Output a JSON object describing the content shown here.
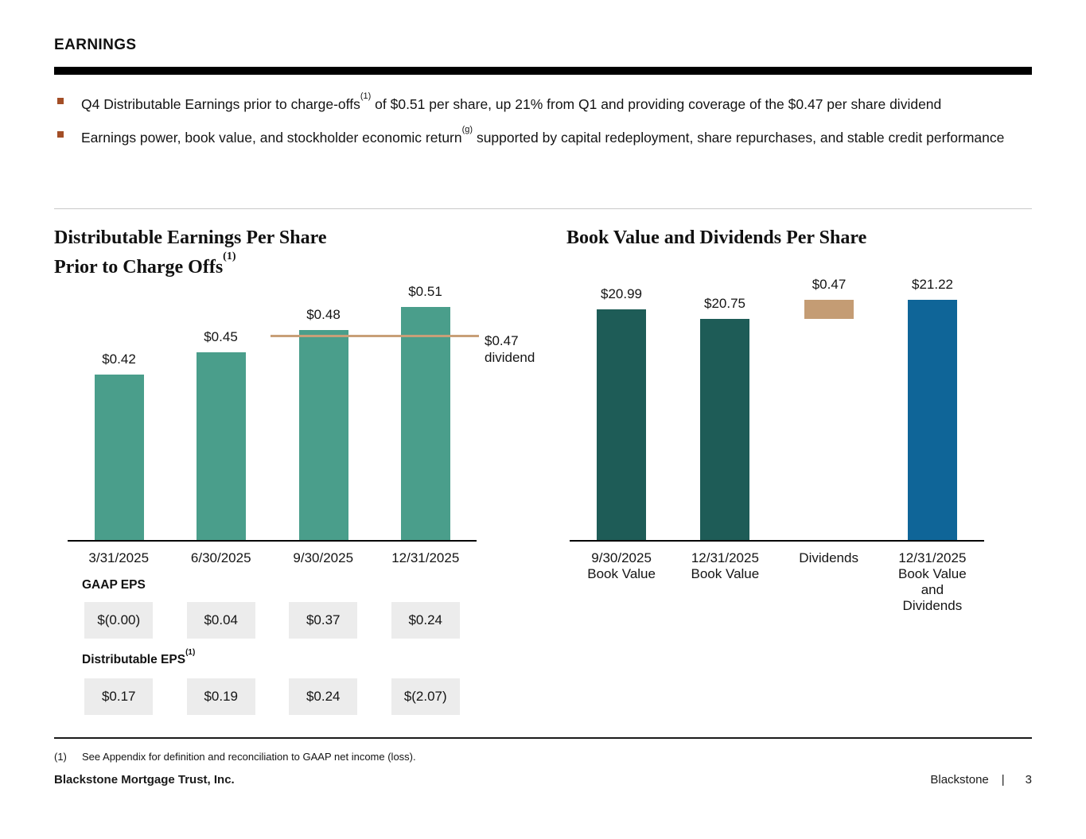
{
  "slide": {
    "header": "EARNINGS",
    "bullets": [
      {
        "pre": "Q4 Distributable Earnings prior to charge-offs",
        "sup": "(1)",
        "post": " of $0.51 per share, up 21% from Q1 and providing coverage of the $0.47 per share dividend"
      },
      {
        "pre": "Earnings power, book value, and stockholder economic return",
        "sup": "(g)",
        "post": " supported by capital redeployment, share repurchases, and stable credit performance"
      }
    ],
    "colors": {
      "bullet": "#A34E26",
      "teal": "#4A9E8B",
      "dark_teal": "#1E5C57",
      "blue": "#0F6598",
      "tan": "#C49C74"
    },
    "footnote": {
      "marker": "(1)",
      "text": "See Appendix for definition and reconciliation to GAAP net income (loss)."
    },
    "footer": {
      "company": "Blackstone Mortgage Trust, Inc.",
      "brand": "Blackstone",
      "separator": "|",
      "page_number": "3"
    }
  },
  "chart_data": [
    {
      "type": "bar",
      "title": "Distributable Earnings Per Share Prior to Charge Offs(1)",
      "title_lines": [
        "Distributable Earnings Per Share",
        "Prior to Charge Offs"
      ],
      "title_sup": "(1)",
      "categories": [
        "3/31/2025",
        "6/30/2025",
        "9/30/2025",
        "12/31/2025"
      ],
      "values": [
        0.42,
        0.45,
        0.48,
        0.51
      ],
      "value_labels": [
        "$0.42",
        "$0.45",
        "$0.48",
        "$0.51"
      ],
      "bar_color": "#4A9E8B",
      "reference_line": {
        "value": 0.47,
        "label_lines": [
          "$0.47",
          "dividend"
        ],
        "color": "#C89F78"
      },
      "ylim": [
        0.2,
        0.54
      ],
      "grid": false,
      "legend": "none"
    },
    {
      "type": "bar",
      "title": "Book Value and Dividends Per Share",
      "categories": [
        [
          "9/30/2025",
          "Book Value"
        ],
        [
          "12/31/2025",
          "Book Value"
        ],
        [
          "Dividends"
        ],
        [
          "12/31/2025",
          "Book Value",
          "and",
          "Dividends"
        ]
      ],
      "bars": [
        {
          "value": 20.99,
          "label": "$20.99",
          "color": "#1E5C57"
        },
        {
          "value": 20.75,
          "label": "$20.75",
          "color": "#1E5C57"
        },
        {
          "value": 0.47,
          "label": "$0.47",
          "color": "#C49C74",
          "float_base": 20.75
        },
        {
          "value": 21.22,
          "label": "$21.22",
          "color": "#0F6598"
        }
      ],
      "ylim": [
        15.2,
        21.6
      ],
      "grid": false,
      "legend": "none"
    },
    {
      "type": "table",
      "columns": [
        "3/31/2025",
        "6/30/2025",
        "9/30/2025",
        "12/31/2025"
      ],
      "rows": [
        {
          "label": "GAAP EPS",
          "label_sup": "",
          "values": [
            "$(0.00)",
            "$0.04",
            "$0.37",
            "$0.24"
          ]
        },
        {
          "label": "Distributable EPS",
          "label_sup": "(1)",
          "values": [
            "$0.17",
            "$0.19",
            "$0.24",
            "$(2.07)"
          ]
        }
      ]
    }
  ]
}
